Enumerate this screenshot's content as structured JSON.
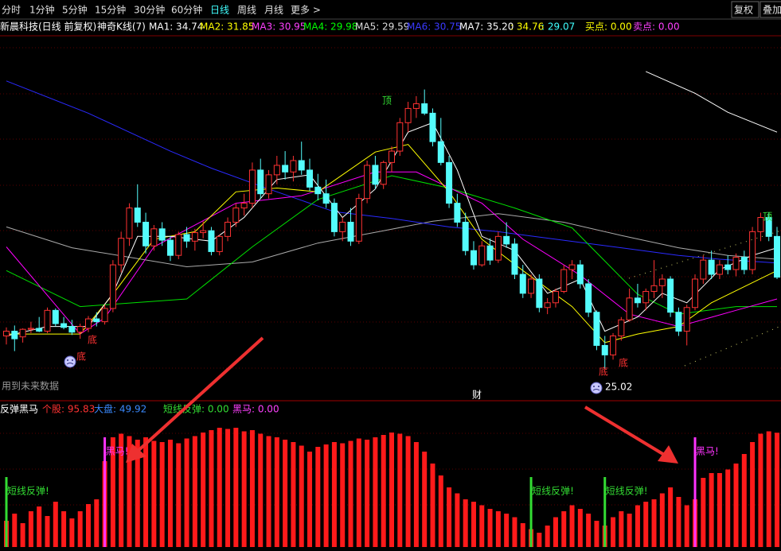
{
  "toolbar": {
    "items": [
      {
        "text": "分时",
        "selected": false
      },
      {
        "text": "1分钟",
        "selected": false
      },
      {
        "text": "5分钟",
        "selected": false
      },
      {
        "text": "15分钟",
        "selected": false
      },
      {
        "text": "30分钟",
        "selected": false
      },
      {
        "text": "60分钟",
        "selected": false
      },
      {
        "text": "日线",
        "selected": true
      },
      {
        "text": "周线",
        "selected": false
      },
      {
        "text": "月线",
        "selected": false
      },
      {
        "text": "更多 >",
        "selected": false
      }
    ],
    "buttons": [
      "复权",
      "叠加"
    ]
  },
  "header": {
    "items": [
      {
        "text": "新晨科技(日线 前复权)",
        "color": "#ffffff"
      },
      {
        "text": "神奇K线(7)",
        "color": "#ffffff"
      },
      {
        "text": "MA1: 34.74",
        "color": "#ffffff"
      },
      {
        "text": "MA2: 31.85",
        "color": "#ffff00"
      },
      {
        "text": "MA3: 30.95",
        "color": "#ff40ff"
      },
      {
        "text": "MA4: 29.98",
        "color": "#00ff00"
      },
      {
        "text": "MA5: 29.59",
        "color": "#dddddd"
      },
      {
        "text": "MA6: 30.75",
        "color": "#3a3aff"
      },
      {
        "text": "MA7: 35.20",
        "color": "#ffffff"
      },
      {
        "text": ": 34.76",
        "color": "#ffff00"
      },
      {
        "text": ": 29.07",
        "color": "#40ffff"
      },
      {
        "text": "买点: 0.00",
        "color": "#ffff00"
      },
      {
        "text": "卖点: 0.00",
        "color": "#ff40ff"
      }
    ]
  },
  "chart_data": [
    {
      "type": "candlestick",
      "xlim": [
        0,
        94
      ],
      "ylim": [
        22,
        60
      ],
      "up_color": "#ff3232",
      "down_color": "#54fcfc",
      "ohlc": [
        [
          28.5,
          29.4,
          27.6,
          29.0
        ],
        [
          29.0,
          29.6,
          26.9,
          28.2
        ],
        [
          28.4,
          29.3,
          27.8,
          29.2
        ],
        [
          29.2,
          30.0,
          28.8,
          29.3
        ],
        [
          29.3,
          30.5,
          28.9,
          29.0
        ],
        [
          29.0,
          31.5,
          28.8,
          31.2
        ],
        [
          31.2,
          31.4,
          29.5,
          29.8
        ],
        [
          29.8,
          30.5,
          29.2,
          29.4
        ],
        [
          29.5,
          30.2,
          28.6,
          28.9
        ],
        [
          28.9,
          29.8,
          28.2,
          29.5
        ],
        [
          29.3,
          30.6,
          28.9,
          30.3
        ],
        [
          30.3,
          31.0,
          29.5,
          30.0
        ],
        [
          30.0,
          31.8,
          29.7,
          31.4
        ],
        [
          31.4,
          36.5,
          31.0,
          36.0
        ],
        [
          36.0,
          39.5,
          35.2,
          38.8
        ],
        [
          38.8,
          42.5,
          38.0,
          42.0
        ],
        [
          42.0,
          44.5,
          40.0,
          40.5
        ],
        [
          40.5,
          41.5,
          37.2,
          38.0
        ],
        [
          38.0,
          40.2,
          37.5,
          39.8
        ],
        [
          39.8,
          40.5,
          38.0,
          38.6
        ],
        [
          38.6,
          39.0,
          36.4,
          37.0
        ],
        [
          37.0,
          39.5,
          36.6,
          39.2
        ],
        [
          39.2,
          40.0,
          37.8,
          38.5
        ],
        [
          38.5,
          39.8,
          37.5,
          39.4
        ],
        [
          39.4,
          40.6,
          38.8,
          39.6
        ],
        [
          39.6,
          40.0,
          37.0,
          37.4
        ],
        [
          37.4,
          39.2,
          37.0,
          39.0
        ],
        [
          39.0,
          41.0,
          38.5,
          40.5
        ],
        [
          40.5,
          42.5,
          40.0,
          42.0
        ],
        [
          42.0,
          43.5,
          41.2,
          42.5
        ],
        [
          42.5,
          46.8,
          42.0,
          46.0
        ],
        [
          46.0,
          47.2,
          43.0,
          43.5
        ],
        [
          43.5,
          46.0,
          43.0,
          45.5
        ],
        [
          45.5,
          47.5,
          44.5,
          46.5
        ],
        [
          46.5,
          48.0,
          45.0,
          45.8
        ],
        [
          45.8,
          47.5,
          44.8,
          47.0
        ],
        [
          47.0,
          49.0,
          45.5,
          46.0
        ],
        [
          46.0,
          47.2,
          43.8,
          44.2
        ],
        [
          44.2,
          45.6,
          42.8,
          43.5
        ],
        [
          43.5,
          45.0,
          42.0,
          42.5
        ],
        [
          42.5,
          43.0,
          39.0,
          39.5
        ],
        [
          39.5,
          41.0,
          38.5,
          40.5
        ],
        [
          40.5,
          42.0,
          38.0,
          38.5
        ],
        [
          38.5,
          43.5,
          38.2,
          43.0
        ],
        [
          43.0,
          47.0,
          42.5,
          46.5
        ],
        [
          46.5,
          47.5,
          44.0,
          44.5
        ],
        [
          44.5,
          47.0,
          44.0,
          46.8
        ],
        [
          46.8,
          48.5,
          45.8,
          48.0
        ],
        [
          48.0,
          51.5,
          47.5,
          51.0
        ],
        [
          51.0,
          53.2,
          50.0,
          52.5
        ],
        [
          52.5,
          53.8,
          51.5,
          53.0
        ],
        [
          53.0,
          54.5,
          51.8,
          52.0
        ],
        [
          52.0,
          52.5,
          48.5,
          49.0
        ],
        [
          49.0,
          51.5,
          46.5,
          46.8
        ],
        [
          46.8,
          47.5,
          42.0,
          42.5
        ],
        [
          42.5,
          43.5,
          40.0,
          40.5
        ],
        [
          40.5,
          41.5,
          37.0,
          37.5
        ],
        [
          37.5,
          38.5,
          35.5,
          36.0
        ],
        [
          36.0,
          38.5,
          35.8,
          38.0
        ],
        [
          38.0,
          38.8,
          36.0,
          36.5
        ],
        [
          36.5,
          39.5,
          36.2,
          39.0
        ],
        [
          39.0,
          40.5,
          37.8,
          38.2
        ],
        [
          38.2,
          38.8,
          34.5,
          35.0
        ],
        [
          35.0,
          36.0,
          32.5,
          33.0
        ],
        [
          33.0,
          35.0,
          32.5,
          34.5
        ],
        [
          34.5,
          35.0,
          31.0,
          31.5
        ],
        [
          31.5,
          32.5,
          30.8,
          32.0
        ],
        [
          32.0,
          33.5,
          31.5,
          33.2
        ],
        [
          33.2,
          36.0,
          33.0,
          35.5
        ],
        [
          35.5,
          36.5,
          34.5,
          36.0
        ],
        [
          36.0,
          36.5,
          33.5,
          34.0
        ],
        [
          34.0,
          34.5,
          30.5,
          31.0
        ],
        [
          31.0,
          31.2,
          27.0,
          27.5
        ],
        [
          27.5,
          28.5,
          25.02,
          26.5
        ],
        [
          26.5,
          28.8,
          26.0,
          28.5
        ],
        [
          28.5,
          30.5,
          28.0,
          30.2
        ],
        [
          30.2,
          33.5,
          30.0,
          32.5
        ],
        [
          32.5,
          34.0,
          31.5,
          32.0
        ],
        [
          32.0,
          33.5,
          31.2,
          33.2
        ],
        [
          33.2,
          36.5,
          32.5,
          33.8
        ],
        [
          33.8,
          35.0,
          32.5,
          34.5
        ],
        [
          34.5,
          34.8,
          30.5,
          31.0
        ],
        [
          31.0,
          31.5,
          28.5,
          29.0
        ],
        [
          29.0,
          31.8,
          27.5,
          31.5
        ],
        [
          31.5,
          35.0,
          31.2,
          34.5
        ],
        [
          34.5,
          37.0,
          34.0,
          36.5
        ],
        [
          36.5,
          37.5,
          34.5,
          35.0
        ],
        [
          35.0,
          36.5,
          34.5,
          36.0
        ],
        [
          36.0,
          37.0,
          35.0,
          35.5
        ],
        [
          35.5,
          37.2,
          34.8,
          36.8
        ],
        [
          36.8,
          37.5,
          35.0,
          35.5
        ],
        [
          35.5,
          40.0,
          35.0,
          39.5
        ],
        [
          39.5,
          41.5,
          38.5,
          41.0
        ],
        [
          41.0,
          41.5,
          38.5,
          39.0
        ],
        [
          39.0,
          40.0,
          34.5,
          34.7
        ]
      ],
      "lines": [
        {
          "color": "#aaaaaa",
          "x": [
            0,
            8,
            22,
            30,
            38,
            46,
            52,
            60,
            68,
            75,
            82,
            88,
            94
          ],
          "values": [
            40.0,
            37.8,
            35.8,
            36.3,
            38.3,
            39.6,
            40.6,
            41.4,
            40.5,
            39.1,
            37.8,
            37.0,
            36.6
          ]
        },
        {
          "color": "#2a2aff",
          "x": [
            0,
            10,
            20,
            25,
            32,
            40,
            47,
            54,
            60,
            67,
            75,
            82,
            87,
            94
          ],
          "values": [
            55.4,
            52.0,
            48.0,
            46.2,
            44.0,
            41.6,
            40.9,
            40.0,
            39.5,
            38.7,
            37.8,
            37.0,
            36.6,
            36.2
          ]
        },
        {
          "color": "#ffffff",
          "x": [
            78,
            84,
            88,
            94
          ],
          "values": [
            56.4,
            54.1,
            52.1,
            50.0
          ]
        },
        {
          "color": "#00e000",
          "x": [
            0,
            9,
            22,
            30,
            38,
            47,
            54,
            62,
            69,
            77,
            82,
            89,
            94
          ],
          "values": [
            35.4,
            31.6,
            32.4,
            37.9,
            42.9,
            45.4,
            44.1,
            42.0,
            39.9,
            32.9,
            30.8,
            31.6,
            31.6
          ]
        },
        {
          "color": "#ff00ff",
          "x": [
            0,
            9,
            12,
            18,
            28,
            36,
            45,
            50,
            58,
            63,
            70,
            76,
            82,
            89,
            94
          ],
          "values": [
            37.9,
            28.7,
            30.4,
            37.9,
            42.5,
            43.3,
            45.8,
            45.8,
            42.5,
            38.7,
            34.9,
            30.8,
            29.5,
            31.2,
            32.4
          ]
        },
        {
          "color": "#ffff00",
          "x": [
            0,
            9,
            13,
            18,
            23,
            28,
            33,
            38,
            45,
            49,
            54,
            58,
            63,
            69,
            73,
            77,
            82,
            86,
            94
          ],
          "values": [
            28.7,
            28.7,
            32.9,
            38.7,
            39.5,
            43.7,
            44.1,
            43.7,
            47.9,
            48.7,
            43.7,
            38.7,
            35.4,
            31.6,
            27.8,
            28.7,
            29.5,
            32.0,
            35.4
          ]
        },
        {
          "color": "#ffffff",
          "x": [
            0,
            5,
            10,
            13,
            16,
            20,
            25,
            29,
            33,
            37,
            41,
            45,
            49,
            52,
            55,
            58,
            62,
            66,
            70,
            73,
            77,
            80,
            83,
            87,
            91,
            94
          ],
          "values": [
            28.5,
            29.5,
            29.5,
            33.0,
            39.0,
            39.0,
            38.5,
            41.0,
            45.0,
            45.5,
            41.0,
            44.0,
            50.0,
            51.0,
            46.0,
            39.0,
            37.5,
            33.0,
            34.5,
            29.0,
            30.5,
            33.0,
            32.0,
            35.5,
            37.0,
            37.8
          ]
        }
      ],
      "annotations": [
        {
          "text": "顶",
          "color": "#33dd33"
        },
        {
          "text": "顶",
          "color": "#33dd33"
        },
        {
          "text": "底",
          "color": "#ff3232"
        },
        {
          "text": "底",
          "color": "#ff3232"
        },
        {
          "text": "底",
          "color": "#ff3232"
        },
        {
          "text": "底",
          "color": "#ff3232"
        },
        {
          "text": "25.02",
          "color": "#ffffff"
        },
        {
          "text": "用到未来数据",
          "color": "#999999"
        },
        {
          "text": "财",
          "color": "#ffffff"
        }
      ]
    },
    {
      "type": "bar",
      "xlim": [
        0,
        94
      ],
      "ylim": [
        0,
        100
      ],
      "color": "#ff1a1a",
      "values": [
        22,
        28,
        20,
        30,
        34,
        26,
        38,
        30,
        24,
        30,
        36,
        40,
        72,
        92,
        95,
        93,
        90,
        92,
        89,
        88,
        90,
        87,
        91,
        93,
        96,
        98,
        100,
        99,
        100,
        97,
        98,
        95,
        93,
        92,
        90,
        88,
        85,
        80,
        84,
        86,
        88,
        87,
        89,
        91,
        90,
        92,
        94,
        96,
        95,
        93,
        88,
        80,
        70,
        60,
        50,
        45,
        40,
        38,
        35,
        32,
        30,
        28,
        25,
        20,
        15,
        12,
        18,
        25,
        30,
        35,
        32,
        28,
        22,
        18,
        25,
        30,
        28,
        35,
        38,
        40,
        45,
        50,
        42,
        35,
        40,
        58,
        62,
        62,
        65,
        70,
        78,
        88,
        95,
        97,
        95.83
      ],
      "legend": [
        {
          "text": "反弹黑马",
          "color": "#ffffff"
        },
        {
          "text": "个股: 95.83",
          "color": "#ff3232"
        },
        {
          "text": "大盘: 49.92",
          "color": "#3a8aff"
        },
        {
          "text": "短线反弹: 0.00",
          "color": "#33dd33"
        },
        {
          "text": "黑马: 0.00",
          "color": "#ff40ff"
        }
      ],
      "signals": [
        {
          "index": 0,
          "label": "短线反弹!",
          "color": "#33dd33"
        },
        {
          "index": 12,
          "label": "黑马!",
          "color": "#ff33ff"
        },
        {
          "index": 64,
          "label": "短线反弹!",
          "color": "#33dd33"
        },
        {
          "index": 73,
          "label": "短线反弹!",
          "color": "#33dd33"
        },
        {
          "index": 84,
          "label": "黑马!",
          "color": "#ff33ff"
        }
      ]
    }
  ]
}
